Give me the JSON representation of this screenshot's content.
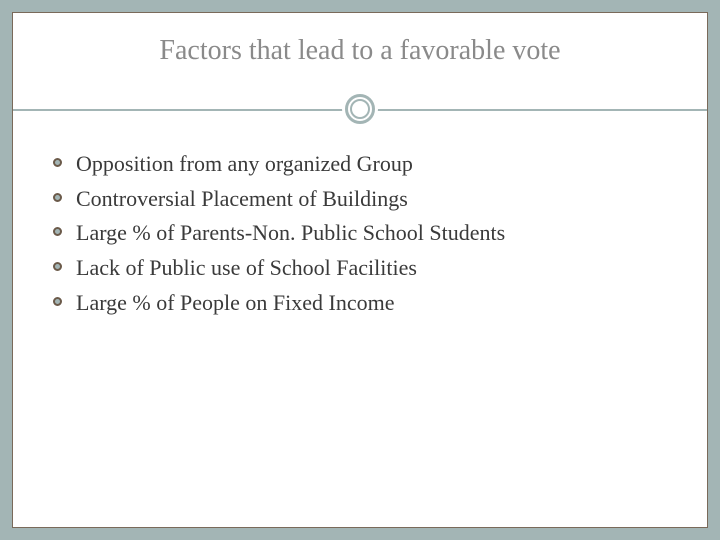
{
  "slide": {
    "title": "Factors that lead to a favorable vote",
    "title_color": "#8a8a8a",
    "title_fontsize": 28,
    "background_color": "#a3b5b5",
    "panel_color": "#ffffff",
    "panel_border_color": "#7a6a5a",
    "accent_color": "#a3b5b5",
    "bullet_border_color": "#6b5a4a",
    "text_color": "#3a3a3a",
    "body_fontsize": 22,
    "bullets": [
      "Opposition from any organized Group",
      "Controversial Placement of Buildings",
      "Large % of Parents-Non. Public School Students",
      "Lack of Public use of School Facilities",
      "Large % of People on Fixed Income"
    ]
  }
}
